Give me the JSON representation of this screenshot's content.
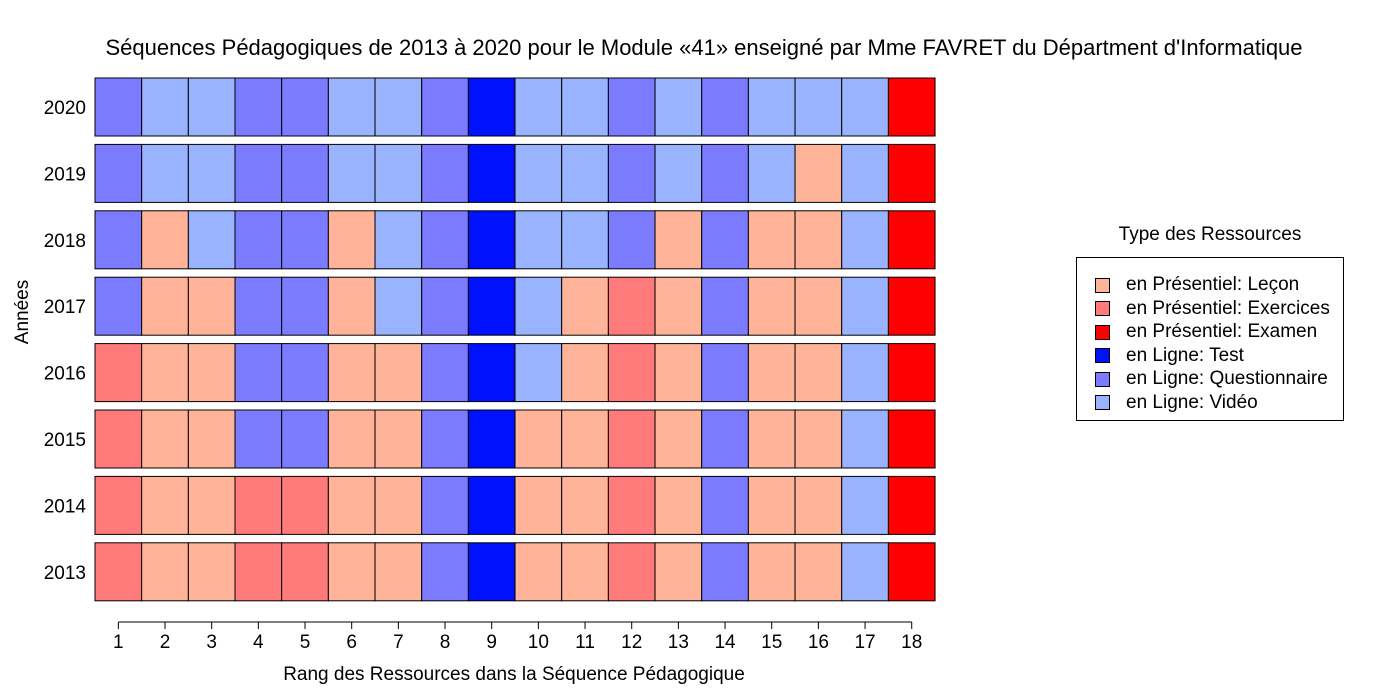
{
  "chart_data": {
    "type": "heatmap",
    "title": "Séquences Pédagogiques de 2013 à 2020 pour le Module «41» enseigné par Mme FAVRET du Départment d'Informatique",
    "xlabel": "Rang des Ressources dans la Séquence Pédagogique",
    "ylabel": "Années",
    "x": [
      "1",
      "2",
      "3",
      "4",
      "5",
      "6",
      "7",
      "8",
      "9",
      "10",
      "11",
      "12",
      "13",
      "14",
      "15",
      "16",
      "17",
      "18"
    ],
    "y": [
      "2020",
      "2019",
      "2018",
      "2017",
      "2016",
      "2015",
      "2014",
      "2013"
    ],
    "legend": {
      "title": "Type des Ressources",
      "placement": "right",
      "items": [
        {
          "key": "L",
          "label": "en Présentiel: Leçon",
          "color": "#ffb499"
        },
        {
          "key": "E",
          "label": "en Présentiel: Exercices",
          "color": "#ff7b7b"
        },
        {
          "key": "X",
          "label": "en Présentiel: Examen",
          "color": "#ff0000"
        },
        {
          "key": "T",
          "label": "en Ligne: Test",
          "color": "#0011ff"
        },
        {
          "key": "Q",
          "label": "en Ligne: Questionnaire",
          "color": "#7b7bff"
        },
        {
          "key": "V",
          "label": "en Ligne: Vidéo",
          "color": "#99b3ff"
        }
      ]
    },
    "rows": [
      {
        "year": "2020",
        "cells": [
          "Q",
          "V",
          "V",
          "Q",
          "Q",
          "V",
          "V",
          "Q",
          "T",
          "V",
          "V",
          "Q",
          "V",
          "Q",
          "V",
          "V",
          "V",
          "X"
        ]
      },
      {
        "year": "2019",
        "cells": [
          "Q",
          "V",
          "V",
          "Q",
          "Q",
          "V",
          "V",
          "Q",
          "T",
          "V",
          "V",
          "Q",
          "V",
          "Q",
          "V",
          "L",
          "V",
          "X"
        ]
      },
      {
        "year": "2018",
        "cells": [
          "Q",
          "L",
          "V",
          "Q",
          "Q",
          "L",
          "V",
          "Q",
          "T",
          "V",
          "V",
          "Q",
          "L",
          "Q",
          "L",
          "L",
          "V",
          "X"
        ]
      },
      {
        "year": "2017",
        "cells": [
          "Q",
          "L",
          "L",
          "Q",
          "Q",
          "L",
          "V",
          "Q",
          "T",
          "V",
          "L",
          "E",
          "L",
          "Q",
          "L",
          "L",
          "V",
          "X"
        ]
      },
      {
        "year": "2016",
        "cells": [
          "E",
          "L",
          "L",
          "Q",
          "Q",
          "L",
          "L",
          "Q",
          "T",
          "V",
          "L",
          "E",
          "L",
          "Q",
          "L",
          "L",
          "V",
          "X"
        ]
      },
      {
        "year": "2015",
        "cells": [
          "E",
          "L",
          "L",
          "Q",
          "Q",
          "L",
          "L",
          "Q",
          "T",
          "L",
          "L",
          "E",
          "L",
          "Q",
          "L",
          "L",
          "V",
          "X"
        ]
      },
      {
        "year": "2014",
        "cells": [
          "E",
          "L",
          "L",
          "E",
          "E",
          "L",
          "L",
          "Q",
          "T",
          "L",
          "L",
          "E",
          "L",
          "Q",
          "L",
          "L",
          "V",
          "X"
        ]
      },
      {
        "year": "2013",
        "cells": [
          "E",
          "L",
          "L",
          "E",
          "E",
          "L",
          "L",
          "Q",
          "T",
          "L",
          "L",
          "E",
          "L",
          "Q",
          "L",
          "L",
          "V",
          "X"
        ]
      }
    ]
  }
}
